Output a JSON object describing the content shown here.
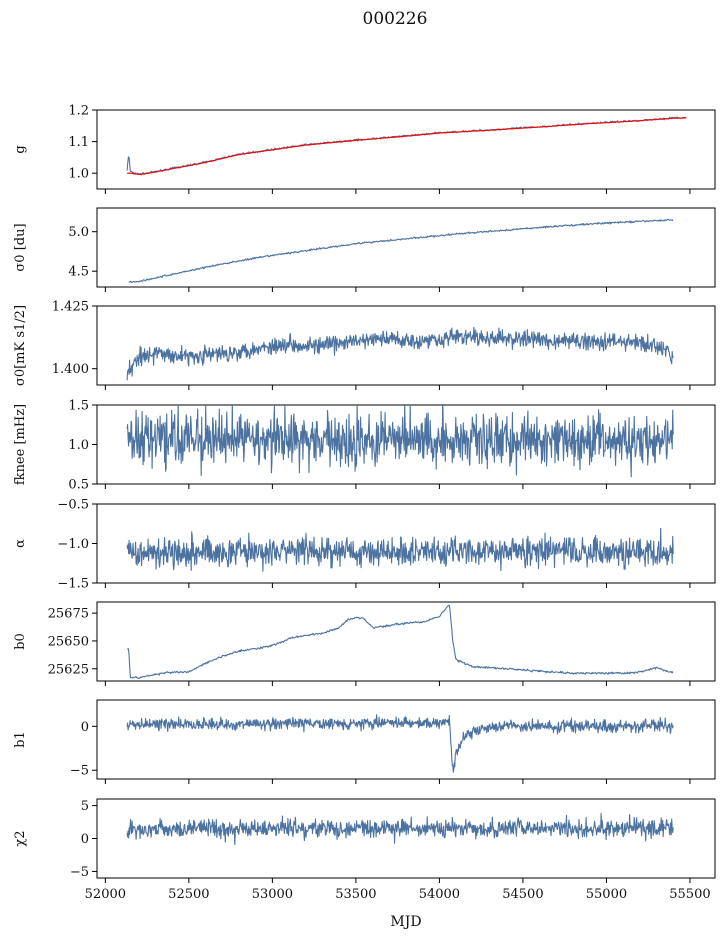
{
  "figure": {
    "title": "000226",
    "xlabel": "MJD",
    "xlim": [
      51950,
      55650
    ],
    "xticks": [
      "52000",
      "52500",
      "53000",
      "53500",
      "54000",
      "54500",
      "55000",
      "55500"
    ],
    "colors": {
      "series": "#4c72a0",
      "fit": "#ff0000",
      "axes": "#000000"
    }
  },
  "chart_data": [
    {
      "type": "line",
      "ylabel": "g",
      "ylim": [
        0.95,
        1.2
      ],
      "yticks": [
        "1.0",
        "1.1",
        "1.2"
      ],
      "series": [
        {
          "values": [
            [
              52130,
              1.01
            ],
            [
              52140,
              1.06
            ],
            [
              52150,
              1.005
            ],
            [
              52200,
              0.997
            ],
            [
              52250,
              1.0
            ],
            [
              52400,
              1.015
            ],
            [
              52600,
              1.035
            ],
            [
              52800,
              1.06
            ],
            [
              53000,
              1.075
            ],
            [
              53200,
              1.09
            ],
            [
              53500,
              1.105
            ],
            [
              53800,
              1.118
            ],
            [
              54000,
              1.128
            ],
            [
              54300,
              1.137
            ],
            [
              54600,
              1.147
            ],
            [
              54900,
              1.158
            ],
            [
              55200,
              1.167
            ],
            [
              55400,
              1.175
            ],
            [
              55480,
              1.176
            ]
          ]
        },
        {
          "values": [
            [
              52130,
              1.0
            ],
            [
              52150,
              1.0
            ],
            [
              52200,
              0.996
            ],
            [
              52250,
              0.999
            ],
            [
              52400,
              1.014
            ],
            [
              52600,
              1.034
            ],
            [
              52800,
              1.059
            ],
            [
              53000,
              1.074
            ],
            [
              53200,
              1.089
            ],
            [
              53500,
              1.104
            ],
            [
              53800,
              1.117
            ],
            [
              54000,
              1.127
            ],
            [
              54300,
              1.136
            ],
            [
              54600,
              1.146
            ],
            [
              54900,
              1.157
            ],
            [
              55200,
              1.166
            ],
            [
              55400,
              1.174
            ],
            [
              55480,
              1.175
            ]
          ]
        }
      ]
    },
    {
      "type": "line",
      "ylabel": "σ0 [du]",
      "ylim": [
        4.3,
        5.3
      ],
      "yticks": [
        "4.5",
        "5.0"
      ],
      "series": [
        {
          "values": [
            [
              52140,
              4.365
            ],
            [
              52200,
              4.37
            ],
            [
              52400,
              4.46
            ],
            [
              52600,
              4.55
            ],
            [
              52800,
              4.63
            ],
            [
              53000,
              4.7
            ],
            [
              53200,
              4.76
            ],
            [
              53500,
              4.85
            ],
            [
              53800,
              4.91
            ],
            [
              54100,
              4.97
            ],
            [
              54400,
              5.02
            ],
            [
              54700,
              5.07
            ],
            [
              55000,
              5.11
            ],
            [
              55400,
              5.15
            ]
          ]
        }
      ]
    },
    {
      "type": "line",
      "ylabel": "σ0[mK s1/2]",
      "ylim": [
        1.3935,
        1.425
      ],
      "yticks": [
        "1.400",
        "1.425"
      ],
      "series": [
        {
          "values": [
            [
              52130,
              1.398
            ],
            [
              52200,
              1.405
            ],
            [
              52300,
              1.406
            ],
            [
              52500,
              1.405
            ],
            [
              52700,
              1.406
            ],
            [
              52900,
              1.408
            ],
            [
              53100,
              1.41
            ],
            [
              53300,
              1.409
            ],
            [
              53500,
              1.411
            ],
            [
              53700,
              1.412
            ],
            [
              53900,
              1.411
            ],
            [
              54100,
              1.413
            ],
            [
              54300,
              1.412
            ],
            [
              54500,
              1.412
            ],
            [
              54700,
              1.411
            ],
            [
              54900,
              1.411
            ],
            [
              55100,
              1.411
            ],
            [
              55300,
              1.409
            ],
            [
              55400,
              1.405
            ]
          ]
        }
      ]
    },
    {
      "type": "line",
      "ylabel": "fknee [mHz]",
      "ylim": [
        0.5,
        1.5
      ],
      "yticks": [
        "0.5",
        "1.0",
        "1.5"
      ],
      "series": [
        {
          "values": [
            [
              52130,
              1.07
            ],
            [
              54100,
              1.06
            ],
            [
              55400,
              1.04
            ]
          ]
        }
      ]
    },
    {
      "type": "line",
      "ylabel": "α",
      "ylim": [
        -1.5,
        -0.5
      ],
      "yticks": [
        "−1.5",
        "−1.0",
        "−0.5"
      ],
      "series": [
        {
          "values": [
            [
              52130,
              -1.1
            ],
            [
              55400,
              -1.1
            ]
          ]
        }
      ]
    },
    {
      "type": "line",
      "ylabel": "b0",
      "ylim": [
        25614,
        25685
      ],
      "yticks": [
        "25625",
        "25650",
        "25675"
      ],
      "series": [
        {
          "values": [
            [
              52130,
              25643
            ],
            [
              52140,
              25642
            ],
            [
              52150,
              25617
            ],
            [
              52200,
              25617
            ],
            [
              52300,
              25620
            ],
            [
              52400,
              25622
            ],
            [
              52500,
              25622
            ],
            [
              52600,
              25630
            ],
            [
              52700,
              25636
            ],
            [
              52800,
              25641
            ],
            [
              52900,
              25643
            ],
            [
              53000,
              25646
            ],
            [
              53100,
              25652
            ],
            [
              53200,
              25655
            ],
            [
              53300,
              25657
            ],
            [
              53400,
              25662
            ],
            [
              53450,
              25669
            ],
            [
              53500,
              25671
            ],
            [
              53550,
              25670
            ],
            [
              53600,
              25662
            ],
            [
              53700,
              25664
            ],
            [
              53800,
              25666
            ],
            [
              53900,
              25667
            ],
            [
              54000,
              25672
            ],
            [
              54060,
              25683
            ],
            [
              54080,
              25650
            ],
            [
              54100,
              25633
            ],
            [
              54200,
              25627
            ],
            [
              54400,
              25625
            ],
            [
              54600,
              25623
            ],
            [
              54800,
              25621
            ],
            [
              55000,
              25621
            ],
            [
              55100,
              25621
            ],
            [
              55200,
              25622
            ],
            [
              55300,
              25626
            ],
            [
              55400,
              25621
            ]
          ]
        }
      ]
    },
    {
      "type": "line",
      "ylabel": "b1",
      "ylim": [
        -6,
        3
      ],
      "yticks": [
        "−5",
        "0"
      ],
      "series": [
        {
          "values": [
            [
              52130,
              0.2
            ],
            [
              54030,
              0.4
            ],
            [
              54060,
              0.6
            ],
            [
              54080,
              -5.3
            ],
            [
              54100,
              -2.8
            ],
            [
              54150,
              -1.2
            ],
            [
              54250,
              -0.3
            ],
            [
              54400,
              0.0
            ],
            [
              55400,
              0.1
            ]
          ]
        }
      ]
    },
    {
      "type": "line",
      "ylabel": "χ2",
      "ylim": [
        -6,
        6
      ],
      "yticks": [
        "−5",
        "0",
        "5"
      ],
      "series": [
        {
          "values": [
            [
              52130,
              1.5
            ],
            [
              55400,
              1.6
            ]
          ]
        }
      ]
    }
  ]
}
